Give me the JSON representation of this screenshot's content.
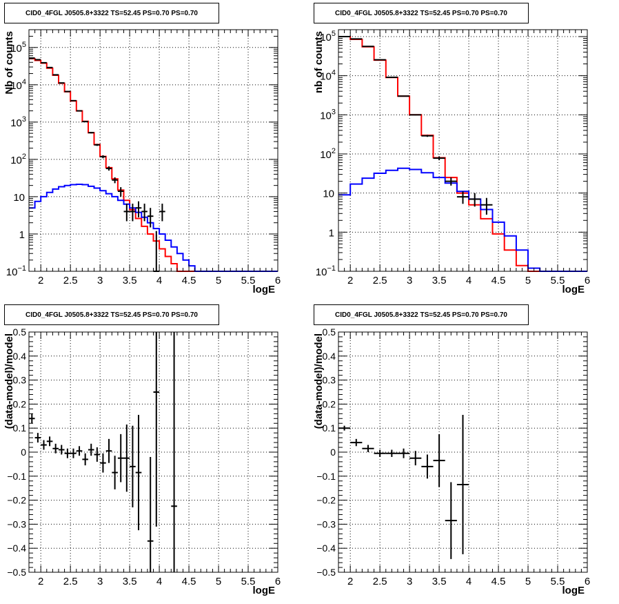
{
  "colors": {
    "total": "#ff0000",
    "source": "#0000ff",
    "data": "#000000",
    "grid": "#000000"
  },
  "chart_data": [
    {
      "type": "line",
      "title": "CID0_4FGL J0505.8+3322 TS=52.45 PS=0.70 PS=0.70",
      "xlabel": "logE",
      "ylabel": "Nb of counts",
      "log_y": true,
      "xlim": [
        1.8,
        6.0
      ],
      "ylim": [
        0.1,
        300000
      ],
      "xticks": [
        "2",
        "2.5",
        "3",
        "3.5",
        "4",
        "4.5",
        "5",
        "5.5",
        "6"
      ],
      "yticks": [
        {
          "v": 0.1,
          "b": "10",
          "e": "−1"
        },
        {
          "v": 1,
          "b": "1",
          "e": ""
        },
        {
          "v": 10,
          "b": "10",
          "e": ""
        },
        {
          "v": 100,
          "b": "10",
          "e": "2"
        },
        {
          "v": 1000,
          "b": "10",
          "e": "3"
        },
        {
          "v": 10000,
          "b": "10",
          "e": "4"
        },
        {
          "v": 100000,
          "b": "10",
          "e": "5"
        }
      ],
      "grid": true,
      "bin_edges": [
        1.8,
        1.9,
        2.0,
        2.1,
        2.2,
        2.3,
        2.4,
        2.5,
        2.6,
        2.7,
        2.8,
        2.9,
        3.0,
        3.1,
        3.2,
        3.3,
        3.4,
        3.5,
        3.6,
        3.7,
        3.8,
        3.9,
        4.0,
        4.1,
        4.2,
        4.3,
        4.4,
        4.5,
        4.6,
        4.7,
        4.8,
        4.9,
        5.0,
        5.1,
        5.2,
        5.3,
        5.4,
        5.5,
        5.6,
        5.7,
        5.8,
        5.9,
        6.0
      ],
      "series": [
        {
          "role": "total",
          "values": [
            50000,
            45000,
            38000,
            28000,
            18000,
            11000,
            6500,
            3700,
            2000,
            1050,
            520,
            250,
            120,
            60,
            30,
            15,
            8,
            4.5,
            2.6,
            1.6,
            1.0,
            0.65,
            0.4,
            0.25,
            0.16,
            0.1,
            0.1,
            0.1,
            0.1,
            0.1,
            0.1,
            0.1,
            0.1,
            0.1,
            0.1,
            0.1,
            0.1,
            0.1,
            0.1,
            0.1,
            0.1,
            0.1
          ]
        },
        {
          "role": "source",
          "values": [
            5,
            7.5,
            10,
            13,
            16,
            18.5,
            20,
            21,
            21.5,
            21,
            19,
            17,
            14.5,
            12,
            10,
            8,
            6.3,
            5,
            3.8,
            2.8,
            2,
            1.4,
            1,
            0.68,
            0.45,
            0.3,
            0.2,
            0.14,
            0.1,
            0.1,
            0.1,
            0.1,
            0.1,
            0.1,
            0.1,
            0.1,
            0.1,
            0.1,
            0.1,
            0.1,
            0.1,
            0.1
          ]
        }
      ],
      "points": [
        {
          "x": 1.85,
          "y": 52000,
          "lo": 51500,
          "hi": 52500
        },
        {
          "x": 1.95,
          "y": 47000,
          "lo": 46500,
          "hi": 47500
        },
        {
          "x": 2.05,
          "y": 39000,
          "lo": 38600,
          "hi": 39400
        },
        {
          "x": 2.15,
          "y": 29000,
          "lo": 28700,
          "hi": 29300
        },
        {
          "x": 2.25,
          "y": 18500,
          "lo": 18300,
          "hi": 18700
        },
        {
          "x": 2.35,
          "y": 11200,
          "lo": 11000,
          "hi": 11400
        },
        {
          "x": 2.45,
          "y": 6600,
          "lo": 6500,
          "hi": 6700
        },
        {
          "x": 2.55,
          "y": 3750,
          "lo": 3690,
          "hi": 3810
        },
        {
          "x": 2.65,
          "y": 2000,
          "lo": 1955,
          "hi": 2045
        },
        {
          "x": 2.75,
          "y": 1030,
          "lo": 998,
          "hi": 1062
        },
        {
          "x": 2.85,
          "y": 520,
          "lo": 497,
          "hi": 543
        },
        {
          "x": 2.95,
          "y": 245,
          "lo": 230,
          "hi": 260
        },
        {
          "x": 3.05,
          "y": 118,
          "lo": 107,
          "hi": 129
        },
        {
          "x": 3.15,
          "y": 57,
          "lo": 50,
          "hi": 65
        },
        {
          "x": 3.25,
          "y": 28,
          "lo": 23,
          "hi": 33
        },
        {
          "x": 3.35,
          "y": 14,
          "lo": 10,
          "hi": 18
        },
        {
          "x": 3.45,
          "y": 4,
          "lo": 2.2,
          "hi": 6.5
        },
        {
          "x": 3.55,
          "y": 4,
          "lo": 2.2,
          "hi": 6.5
        },
        {
          "x": 3.65,
          "y": 5,
          "lo": 2.8,
          "hi": 7.5
        },
        {
          "x": 3.75,
          "y": 4,
          "lo": 2.2,
          "hi": 6.5
        },
        {
          "x": 3.85,
          "y": 3,
          "lo": 1.5,
          "hi": 5
        },
        {
          "x": 3.95,
          "y": 0.1,
          "lo": 0.1,
          "hi": 1.2
        },
        {
          "x": 4.05,
          "y": 4,
          "lo": 2.2,
          "hi": 6.5
        }
      ]
    },
    {
      "type": "line",
      "title": "CID0_4FGL J0505.8+3322 TS=52.45 PS=0.70 PS=0.70",
      "xlabel": "logE",
      "ylabel": "nb of counts",
      "log_y": true,
      "xlim": [
        1.8,
        6.0
      ],
      "ylim": [
        0.1,
        150000
      ],
      "xticks": [
        "2",
        "2.5",
        "3",
        "3.5",
        "4",
        "4.5",
        "5",
        "5.5",
        "6"
      ],
      "yticks": [
        {
          "v": 0.1,
          "b": "10",
          "e": "−1"
        },
        {
          "v": 1,
          "b": "1",
          "e": ""
        },
        {
          "v": 10,
          "b": "10",
          "e": ""
        },
        {
          "v": 100,
          "b": "10",
          "e": "2"
        },
        {
          "v": 1000,
          "b": "10",
          "e": "3"
        },
        {
          "v": 10000,
          "b": "10",
          "e": "4"
        },
        {
          "v": 100000,
          "b": "10",
          "e": "5"
        }
      ],
      "grid": true,
      "bin_edges": [
        1.8,
        2.0,
        2.2,
        2.4,
        2.6,
        2.8,
        3.0,
        3.2,
        3.4,
        3.6,
        3.8,
        4.0,
        4.2,
        4.4,
        4.6,
        4.8,
        5.0,
        5.2,
        5.4,
        5.6,
        5.8,
        6.0
      ],
      "series": [
        {
          "role": "total",
          "values": [
            100000,
            85000,
            55000,
            25000,
            9000,
            3000,
            1000,
            300,
            80,
            25,
            10,
            5,
            2.2,
            0.9,
            0.35,
            0.14,
            0.1,
            0.1,
            0.1,
            0.1,
            0.1
          ]
        },
        {
          "role": "source",
          "values": [
            9,
            17,
            24,
            32,
            38,
            43,
            40,
            33,
            25,
            18,
            11,
            7,
            3.8,
            1.8,
            0.8,
            0.35,
            0.12,
            0.1,
            0.1,
            0.1,
            0.1
          ]
        }
      ],
      "points": [
        {
          "x": 1.9,
          "y": 100000,
          "lo": 99500,
          "hi": 100500
        },
        {
          "x": 2.1,
          "y": 87000,
          "lo": 86600,
          "hi": 87400
        },
        {
          "x": 2.3,
          "y": 56000,
          "lo": 55700,
          "hi": 56300
        },
        {
          "x": 2.5,
          "y": 25500,
          "lo": 25300,
          "hi": 25700
        },
        {
          "x": 2.7,
          "y": 9100,
          "lo": 9000,
          "hi": 9200
        },
        {
          "x": 2.9,
          "y": 3000,
          "lo": 2945,
          "hi": 3055
        },
        {
          "x": 3.1,
          "y": 1000,
          "lo": 968,
          "hi": 1032
        },
        {
          "x": 3.3,
          "y": 290,
          "lo": 273,
          "hi": 307
        },
        {
          "x": 3.5,
          "y": 78,
          "lo": 69,
          "hi": 87
        },
        {
          "x": 3.7,
          "y": 20,
          "lo": 15.5,
          "hi": 25
        },
        {
          "x": 3.9,
          "y": 8,
          "lo": 5.3,
          "hi": 11
        },
        {
          "x": 4.1,
          "y": 7,
          "lo": 4.5,
          "hi": 10
        },
        {
          "x": 4.3,
          "y": 5,
          "lo": 2.8,
          "hi": 7.5
        }
      ]
    },
    {
      "type": "scatter",
      "title": "CID0_4FGL J0505.8+3322 TS=52.45 PS=0.70 PS=0.70",
      "xlabel": "logE",
      "ylabel": "(data-model)/model",
      "log_y": false,
      "xlim": [
        1.8,
        6.0
      ],
      "ylim": [
        -0.5,
        0.5
      ],
      "xticks": [
        "2",
        "2.5",
        "3",
        "3.5",
        "4",
        "4.5",
        "5",
        "5.5",
        "6"
      ],
      "yticks": [
        {
          "v": -0.5,
          "t": "−0.5"
        },
        {
          "v": -0.4,
          "t": "−0.4"
        },
        {
          "v": -0.3,
          "t": "−0.3"
        },
        {
          "v": -0.2,
          "t": "−0.2"
        },
        {
          "v": -0.1,
          "t": "−0.1"
        },
        {
          "v": 0,
          "t": "0"
        },
        {
          "v": 0.1,
          "t": "0.1"
        },
        {
          "v": 0.2,
          "t": "0.2"
        },
        {
          "v": 0.3,
          "t": "0.3"
        },
        {
          "v": 0.4,
          "t": "0.4"
        },
        {
          "v": 0.5,
          "t": "0.5"
        }
      ],
      "grid": true,
      "xerr": 0.05,
      "points": [
        {
          "x": 1.85,
          "y": 0.14,
          "err": 0.02
        },
        {
          "x": 1.95,
          "y": 0.06,
          "err": 0.02
        },
        {
          "x": 2.05,
          "y": 0.03,
          "err": 0.02
        },
        {
          "x": 2.15,
          "y": 0.045,
          "err": 0.02
        },
        {
          "x": 2.25,
          "y": 0.015,
          "err": 0.02
        },
        {
          "x": 2.35,
          "y": 0.01,
          "err": 0.02
        },
        {
          "x": 2.45,
          "y": -0.005,
          "err": 0.02
        },
        {
          "x": 2.55,
          "y": -0.005,
          "err": 0.02
        },
        {
          "x": 2.65,
          "y": 0.005,
          "err": 0.02
        },
        {
          "x": 2.75,
          "y": -0.03,
          "err": 0.025
        },
        {
          "x": 2.85,
          "y": 0.01,
          "err": 0.025
        },
        {
          "x": 2.95,
          "y": -0.01,
          "err": 0.03
        },
        {
          "x": 3.05,
          "y": -0.045,
          "err": 0.04
        },
        {
          "x": 3.15,
          "y": 0.005,
          "err": 0.05
        },
        {
          "x": 3.25,
          "y": -0.085,
          "err": 0.07
        },
        {
          "x": 3.35,
          "y": -0.025,
          "err": 0.1
        },
        {
          "x": 3.45,
          "y": -0.025,
          "err": 0.14
        },
        {
          "x": 3.55,
          "y": -0.06,
          "err": 0.17
        },
        {
          "x": 3.65,
          "y": -0.085,
          "err": 0.24
        },
        {
          "x": 3.85,
          "y": -0.37,
          "err": 0.35
        },
        {
          "x": 3.95,
          "y": 0.25,
          "err": 0.56
        },
        {
          "x": 4.25,
          "y": -0.225,
          "err": 0.8
        }
      ]
    },
    {
      "type": "scatter",
      "title": "CID0_4FGL J0505.8+3322 TS=52.45 PS=0.70 PS=0.70",
      "xlabel": "logE",
      "ylabel": "(data-model)/model",
      "log_y": false,
      "xlim": [
        1.8,
        6.0
      ],
      "ylim": [
        -0.5,
        0.5
      ],
      "xticks": [
        "2",
        "2.5",
        "3",
        "3.5",
        "4",
        "4.5",
        "5",
        "5.5",
        "6"
      ],
      "yticks": [
        {
          "v": -0.5,
          "t": "−0.5"
        },
        {
          "v": -0.4,
          "t": "−0.4"
        },
        {
          "v": -0.3,
          "t": "−0.3"
        },
        {
          "v": -0.2,
          "t": "−0.2"
        },
        {
          "v": -0.1,
          "t": "−0.1"
        },
        {
          "v": 0,
          "t": "0"
        },
        {
          "v": 0.1,
          "t": "0.1"
        },
        {
          "v": 0.2,
          "t": "0.2"
        },
        {
          "v": 0.3,
          "t": "0.3"
        },
        {
          "v": 0.4,
          "t": "0.4"
        },
        {
          "v": 0.5,
          "t": "0.5"
        }
      ],
      "grid": true,
      "xerr": 0.1,
      "points": [
        {
          "x": 1.9,
          "y": 0.1,
          "err": 0.01
        },
        {
          "x": 2.1,
          "y": 0.04,
          "err": 0.015
        },
        {
          "x": 2.3,
          "y": 0.015,
          "err": 0.015
        },
        {
          "x": 2.5,
          "y": -0.005,
          "err": 0.015
        },
        {
          "x": 2.7,
          "y": -0.005,
          "err": 0.015
        },
        {
          "x": 2.9,
          "y": -0.005,
          "err": 0.02
        },
        {
          "x": 3.1,
          "y": -0.025,
          "err": 0.03
        },
        {
          "x": 3.3,
          "y": -0.06,
          "err": 0.05
        },
        {
          "x": 3.5,
          "y": -0.035,
          "err": 0.11
        },
        {
          "x": 3.7,
          "y": -0.285,
          "err": 0.16
        },
        {
          "x": 3.9,
          "y": -0.135,
          "err": 0.29
        }
      ]
    }
  ]
}
